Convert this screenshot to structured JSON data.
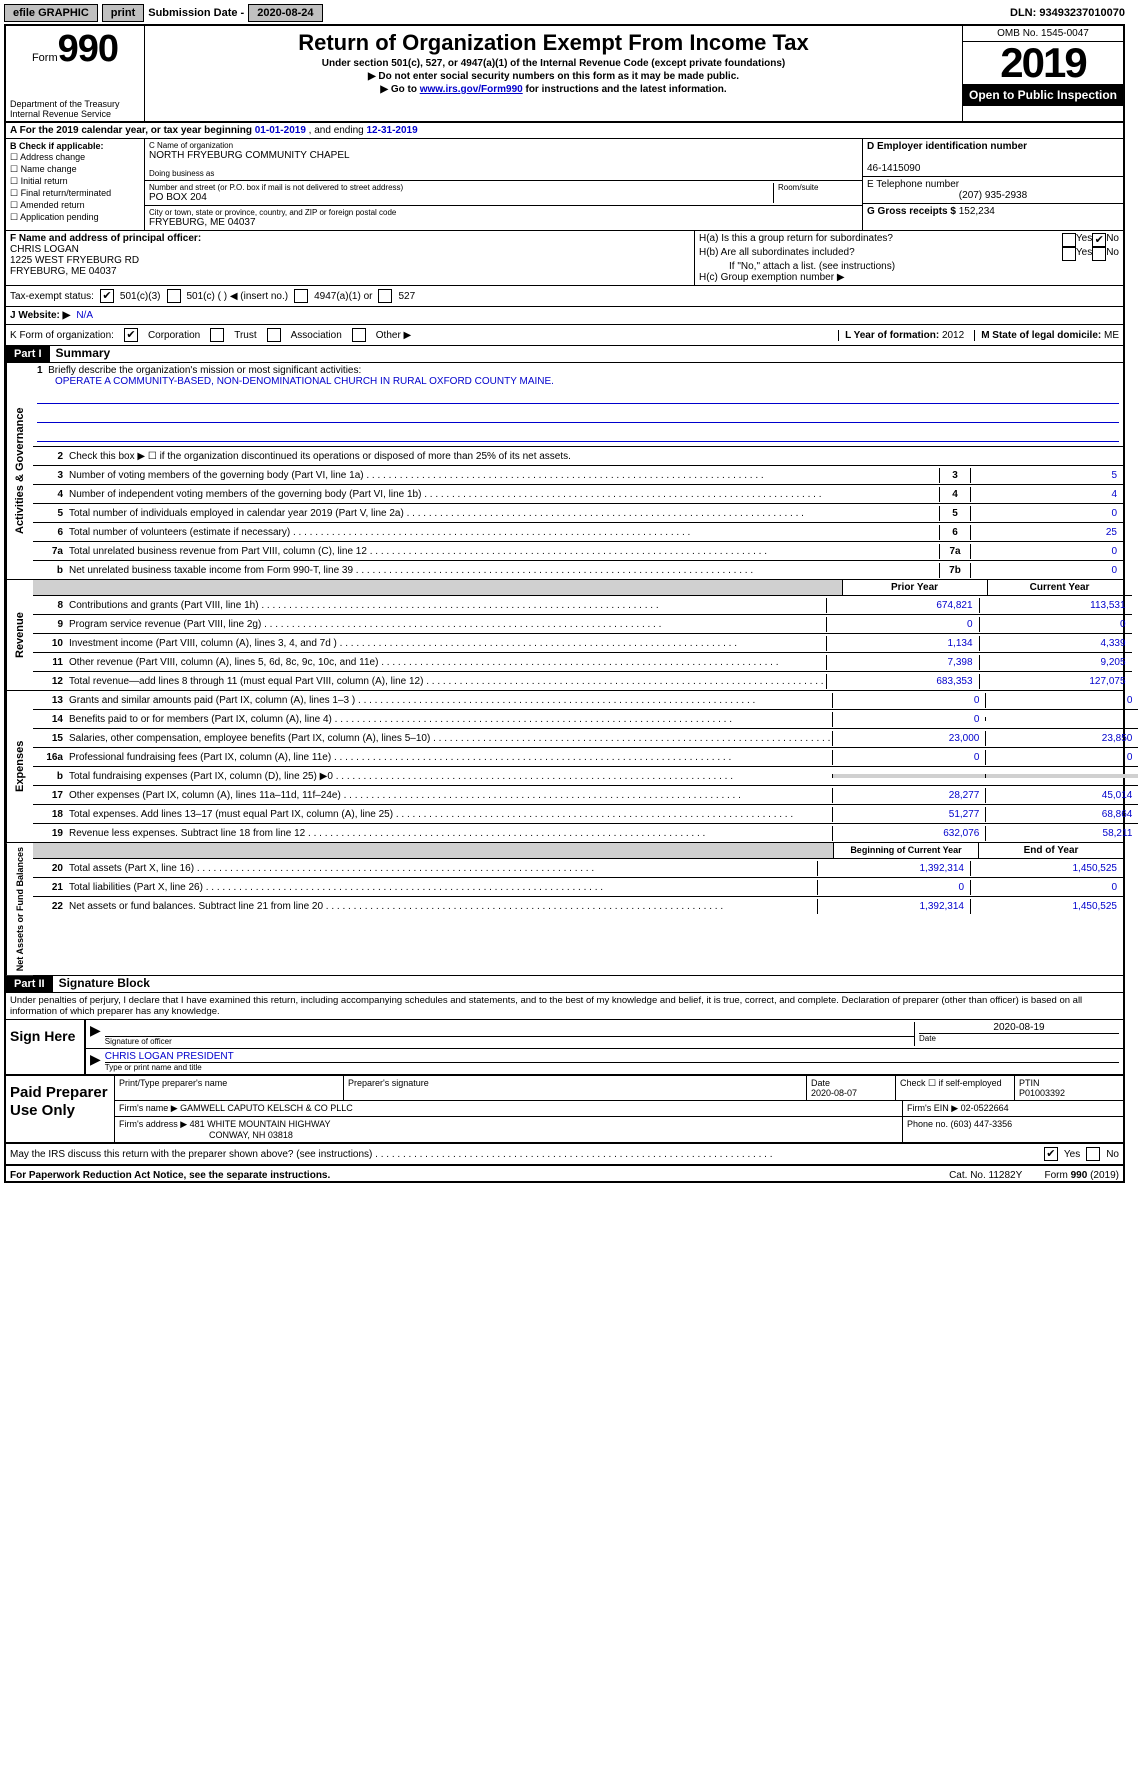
{
  "topbar": {
    "efile": "efile GRAPHIC",
    "print": "print",
    "sub_label": "Submission Date - ",
    "sub_date": "2020-08-24",
    "dln_label": "DLN: ",
    "dln": "93493237010070"
  },
  "header": {
    "form_prefix": "Form",
    "form_number": "990",
    "dept": "Department of the Treasury\nInternal Revenue Service",
    "title": "Return of Organization Exempt From Income Tax",
    "sub1": "Under section 501(c), 527, or 4947(a)(1) of the Internal Revenue Code (except private foundations)",
    "sub2": "▶ Do not enter social security numbers on this form as it may be made public.",
    "sub3_pre": "▶ Go to ",
    "sub3_link": "www.irs.gov/Form990",
    "sub3_post": " for instructions and the latest information.",
    "omb": "OMB No. 1545-0047",
    "year": "2019",
    "open": "Open to Public Inspection"
  },
  "row_a": {
    "text_pre": "A For the 2019 calendar year, or tax year beginning ",
    "begin": "01-01-2019",
    "mid": " , and ending ",
    "end": "12-31-2019"
  },
  "section_b": {
    "label": "B Check if applicable:",
    "items": [
      "Address change",
      "Name change",
      "Initial return",
      "Final return/terminated",
      "Amended return",
      "Application pending"
    ]
  },
  "section_c": {
    "name_lbl": "C Name of organization",
    "name": "NORTH FRYEBURG COMMUNITY CHAPEL",
    "dba_lbl": "Doing business as",
    "dba": "",
    "addr_lbl": "Number and street (or P.O. box if mail is not delivered to street address)",
    "room_lbl": "Room/suite",
    "addr": "PO BOX 204",
    "city_lbl": "City or town, state or province, country, and ZIP or foreign postal code",
    "city": "FRYEBURG, ME  04037"
  },
  "section_d": {
    "label": "D Employer identification number",
    "ein": "46-1415090"
  },
  "section_e": {
    "label": "E Telephone number",
    "phone": "(207) 935-2938"
  },
  "section_g": {
    "label": "G Gross receipts $ ",
    "amount": "152,234"
  },
  "section_f": {
    "label": "F Name and address of principal officer:",
    "name": "CHRIS LOGAN",
    "addr1": "1225 WEST FRYEBURG RD",
    "addr2": "FRYEBURG, ME  04037"
  },
  "section_h": {
    "ha": "H(a)  Is this a group return for subordinates?",
    "hb": "H(b)  Are all subordinates included?",
    "hb_note": "If \"No,\" attach a list. (see instructions)",
    "hc": "H(c)  Group exemption number ▶",
    "yes": "Yes",
    "no": "No"
  },
  "tax_status": {
    "label": "Tax-exempt status:",
    "opt1": "501(c)(3)",
    "opt2": "501(c) (   ) ◀ (insert no.)",
    "opt3": "4947(a)(1) or",
    "opt4": "527"
  },
  "website": {
    "label": "J   Website: ▶",
    "value": "N/A"
  },
  "row_k": {
    "label": "K Form of organization:",
    "corp": "Corporation",
    "trust": "Trust",
    "assoc": "Association",
    "other": "Other ▶",
    "l_label": "L Year of formation: ",
    "l_val": "2012",
    "m_label": "M State of legal domicile: ",
    "m_val": "ME"
  },
  "part1": {
    "header": "Part I",
    "title": "Summary",
    "vert_ag": "Activities & Governance",
    "vert_rev": "Revenue",
    "vert_exp": "Expenses",
    "vert_net": "Net Assets or Fund Balances",
    "line1_lbl": "Briefly describe the organization's mission or most significant activities:",
    "line1_val": "OPERATE A COMMUNITY-BASED, NON-DENOMINATIONAL CHURCH IN RURAL OXFORD COUNTY MAINE.",
    "line2": "Check this box ▶ ☐ if the organization discontinued its operations or disposed of more than 25% of its net assets.",
    "lines_ag": [
      {
        "n": "3",
        "t": "Number of voting members of the governing body (Part VI, line 1a)",
        "b": "3",
        "v": "5"
      },
      {
        "n": "4",
        "t": "Number of independent voting members of the governing body (Part VI, line 1b)",
        "b": "4",
        "v": "4"
      },
      {
        "n": "5",
        "t": "Total number of individuals employed in calendar year 2019 (Part V, line 2a)",
        "b": "5",
        "v": "0"
      },
      {
        "n": "6",
        "t": "Total number of volunteers (estimate if necessary)",
        "b": "6",
        "v": "25"
      },
      {
        "n": "7a",
        "t": "Total unrelated business revenue from Part VIII, column (C), line 12",
        "b": "7a",
        "v": "0"
      },
      {
        "n": "b",
        "t": "Net unrelated business taxable income from Form 990-T, line 39",
        "b": "7b",
        "v": "0"
      }
    ],
    "prior_hd": "Prior Year",
    "current_hd": "Current Year",
    "lines_rev": [
      {
        "n": "8",
        "t": "Contributions and grants (Part VIII, line 1h)",
        "p": "674,821",
        "c": "113,531"
      },
      {
        "n": "9",
        "t": "Program service revenue (Part VIII, line 2g)",
        "p": "0",
        "c": "0"
      },
      {
        "n": "10",
        "t": "Investment income (Part VIII, column (A), lines 3, 4, and 7d )",
        "p": "1,134",
        "c": "4,339"
      },
      {
        "n": "11",
        "t": "Other revenue (Part VIII, column (A), lines 5, 6d, 8c, 9c, 10c, and 11e)",
        "p": "7,398",
        "c": "9,205"
      },
      {
        "n": "12",
        "t": "Total revenue—add lines 8 through 11 (must equal Part VIII, column (A), line 12)",
        "p": "683,353",
        "c": "127,075"
      }
    ],
    "lines_exp": [
      {
        "n": "13",
        "t": "Grants and similar amounts paid (Part IX, column (A), lines 1–3 )",
        "p": "0",
        "c": "0"
      },
      {
        "n": "14",
        "t": "Benefits paid to or for members (Part IX, column (A), line 4)",
        "p": "0",
        "c": ""
      },
      {
        "n": "15",
        "t": "Salaries, other compensation, employee benefits (Part IX, column (A), lines 5–10)",
        "p": "23,000",
        "c": "23,850"
      },
      {
        "n": "16a",
        "t": "Professional fundraising fees (Part IX, column (A), line 11e)",
        "p": "0",
        "c": "0"
      },
      {
        "n": "b",
        "t": "Total fundraising expenses (Part IX, column (D), line 25) ▶0",
        "p": "",
        "c": "",
        "shaded": true
      },
      {
        "n": "17",
        "t": "Other expenses (Part IX, column (A), lines 11a–11d, 11f–24e)",
        "p": "28,277",
        "c": "45,014"
      },
      {
        "n": "18",
        "t": "Total expenses. Add lines 13–17 (must equal Part IX, column (A), line 25)",
        "p": "51,277",
        "c": "68,864"
      },
      {
        "n": "19",
        "t": "Revenue less expenses. Subtract line 18 from line 12",
        "p": "632,076",
        "c": "58,211"
      }
    ],
    "begin_hd": "Beginning of Current Year",
    "end_hd": "End of Year",
    "lines_net": [
      {
        "n": "20",
        "t": "Total assets (Part X, line 16)",
        "p": "1,392,314",
        "c": "1,450,525"
      },
      {
        "n": "21",
        "t": "Total liabilities (Part X, line 26)",
        "p": "0",
        "c": "0"
      },
      {
        "n": "22",
        "t": "Net assets or fund balances. Subtract line 21 from line 20",
        "p": "1,392,314",
        "c": "1,450,525"
      }
    ]
  },
  "part2": {
    "header": "Part II",
    "title": "Signature Block",
    "perjury": "Under penalties of perjury, I declare that I have examined this return, including accompanying schedules and statements, and to the best of my knowledge and belief, it is true, correct, and complete. Declaration of preparer (other than officer) is based on all information of which preparer has any knowledge.",
    "sign_here": "Sign Here",
    "sig_officer": "Signature of officer",
    "sig_date": "2020-08-19",
    "date_lbl": "Date",
    "name_title": "CHRIS LOGAN  PRESIDENT",
    "name_title_lbl": "Type or print name and title",
    "paid": "Paid Preparer Use Only",
    "prep_name_lbl": "Print/Type preparer's name",
    "prep_sig_lbl": "Preparer's signature",
    "prep_date_lbl": "Date",
    "prep_date": "2020-08-07",
    "check_self": "Check ☐ if self-employed",
    "ptin_lbl": "PTIN",
    "ptin": "P01003392",
    "firm_name_lbl": "Firm's name      ▶ ",
    "firm_name": "GAMWELL CAPUTO KELSCH & CO PLLC",
    "firm_ein_lbl": "Firm's EIN ▶ ",
    "firm_ein": "02-0522664",
    "firm_addr_lbl": "Firm's address ▶ ",
    "firm_addr1": "481 WHITE MOUNTAIN HIGHWAY",
    "firm_addr2": "CONWAY, NH  03818",
    "phone_lbl": "Phone no. ",
    "phone": "(603) 447-3356",
    "discuss": "May the IRS discuss this return with the preparer shown above? (see instructions)",
    "yes": "Yes",
    "no": "No"
  },
  "footer": {
    "pra": "For Paperwork Reduction Act Notice, see the separate instructions.",
    "cat": "Cat. No. 11282Y",
    "form": "Form 990 (2019)"
  }
}
